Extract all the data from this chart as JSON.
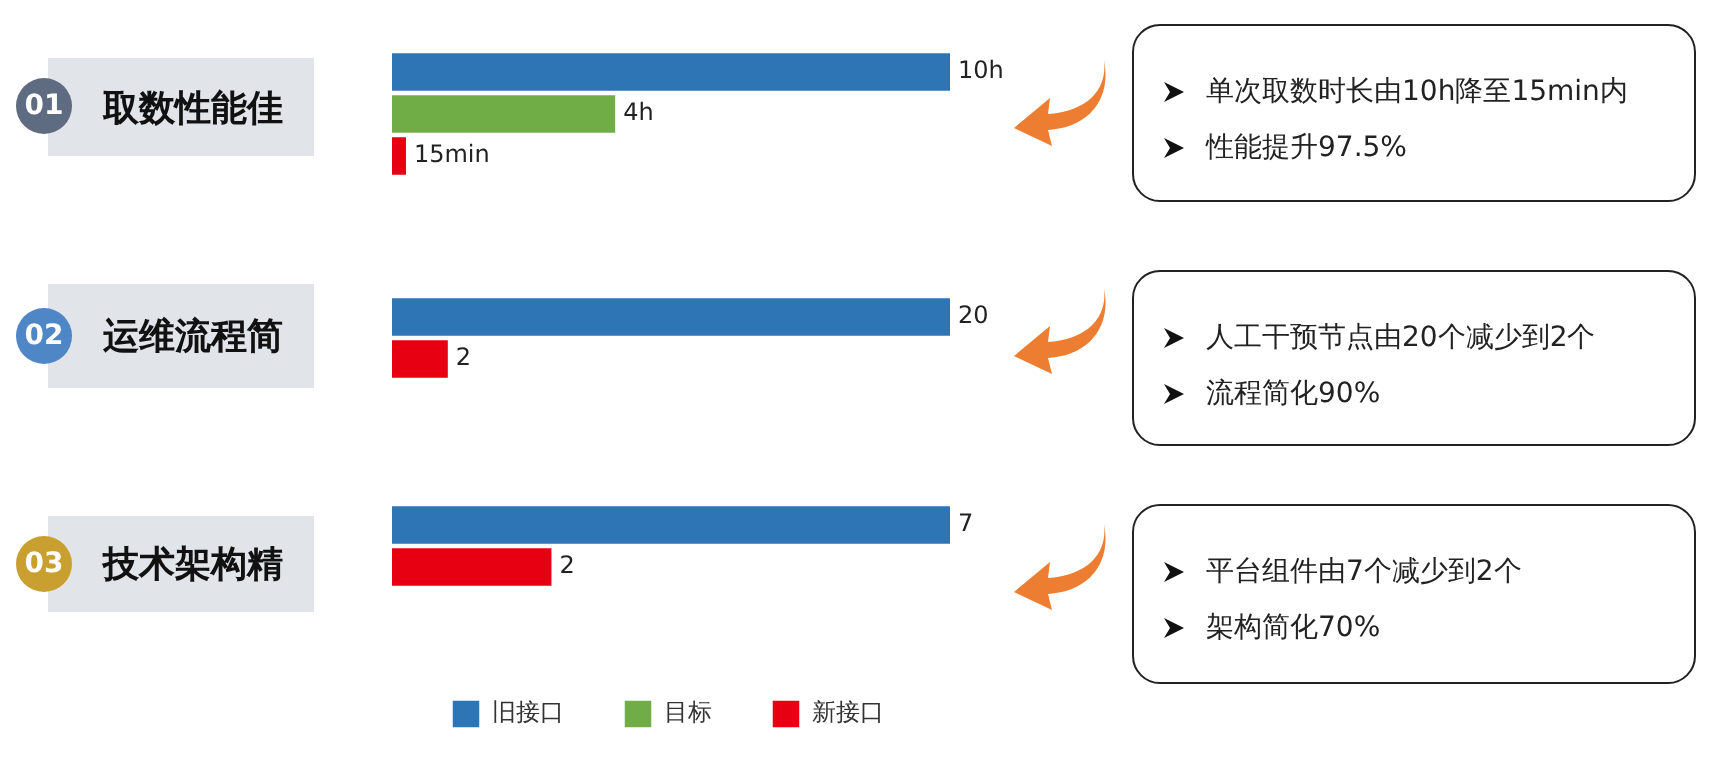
{
  "chart_data": [
    {
      "type": "bar",
      "orientation": "horizontal",
      "title": "取数性能佳",
      "categories": [
        null
      ],
      "series": [
        {
          "color": "#2e75b6",
          "values": [
            10
          ],
          "value_labels": [
            "10h"
          ]
        },
        {
          "color": "#70ad47",
          "values": [
            4
          ],
          "value_labels": [
            "4h"
          ]
        },
        {
          "color": "#e60012",
          "values": [
            0.25
          ]
        }
      ],
      "annotations": [
        "01",
        "单次取数时长由10h降至15min内",
        "性能提升97.5%",
        {
          "text": "15min",
          "x": 0.25
        }
      ]
    },
    {
      "type": "bar",
      "orientation": "horizontal",
      "title": "运维流程简",
      "categories": [
        null
      ],
      "series": [
        {
          "color": "#2e75b6",
          "values": [
            20
          ],
          "value_labels": [
            "20"
          ]
        },
        {
          "color": "#e60012",
          "values": [
            2
          ],
          "value_labels": [
            "2"
          ]
        }
      ],
      "annotations": [
        "02",
        "人工干预节点由20个减少到2个",
        "流程简化90%"
      ]
    },
    {
      "type": "bar",
      "orientation": "horizontal",
      "title": "技术架构精",
      "categories": [
        null
      ],
      "legend": "bottom",
      "series": [
        {
          "name": "旧接口",
          "color": "#2e75b6",
          "values": [
            7
          ],
          "value_labels": [
            "7"
          ]
        },
        {
          "name": "目标",
          "color": "#70ad47",
          "values": [
            null
          ],
          "value_labels": [
            null
          ]
        },
        {
          "name": "新接口",
          "color": "#e60012",
          "values": [
            2
          ],
          "value_labels": [
            "2"
          ]
        }
      ],
      "annotations": [
        "03",
        "平台组件由7个减少到2个",
        "架构简化70%"
      ]
    }
  ]
}
